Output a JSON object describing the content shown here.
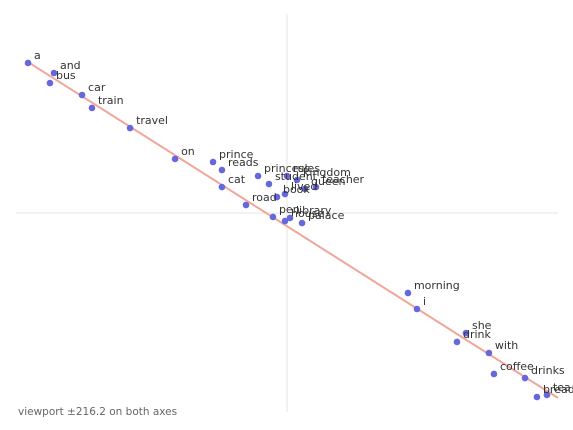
{
  "chart_data": {
    "type": "scatter",
    "caption": "viewport ±216.2 on both axes",
    "xlim": [
      -216.2,
      216.2
    ],
    "ylim": [
      -216.2,
      216.2
    ],
    "color": "#6666dd",
    "labels": [
      "a",
      "and",
      "bus",
      "car",
      "train",
      "travel",
      "on",
      "prince",
      "reads",
      "princess",
      "cat",
      "rules",
      "kingdom",
      "student",
      "teacher",
      "queen",
      "lived",
      "book",
      "road",
      "pen",
      "house",
      "library",
      "palace",
      "morning",
      "i",
      "she",
      "drink",
      "with",
      "coffee",
      "drinks",
      "tea",
      "bread"
    ],
    "x": [
      -206.6,
      -185.9,
      -189.1,
      -163.5,
      -155.6,
      -125.2,
      -89.3,
      -59.0,
      -51.9,
      -23.1,
      -51.9,
      0.0,
      8.0,
      -14.4,
      23.1,
      14.4,
      -1.6,
      -8.0,
      -32.7,
      -11.2,
      -1.6,
      2.4,
      12.0,
      96.5,
      103.7,
      142.8,
      135.6,
      161.1,
      165.1,
      189.9,
      207.4,
      199.4
    ],
    "y": [
      163.0,
      152.1,
      141.2,
      128.2,
      114.1,
      92.3,
      58.7,
      55.4,
      46.7,
      40.2,
      28.2,
      40.2,
      35.9,
      31.5,
      28.2,
      26.1,
      20.6,
      17.4,
      8.7,
      -4.3,
      -8.7,
      -5.4,
      -10.9,
      -86.9,
      -104.3,
      -130.4,
      -140.1,
      -152.1,
      -174.9,
      -179.3,
      -197.7,
      -199.9
    ],
    "fit_line": {
      "x": [
        -206.6,
        216.2
      ],
      "y": [
        164.0,
        -201.0
      ],
      "color": "#f2a59a"
    }
  }
}
